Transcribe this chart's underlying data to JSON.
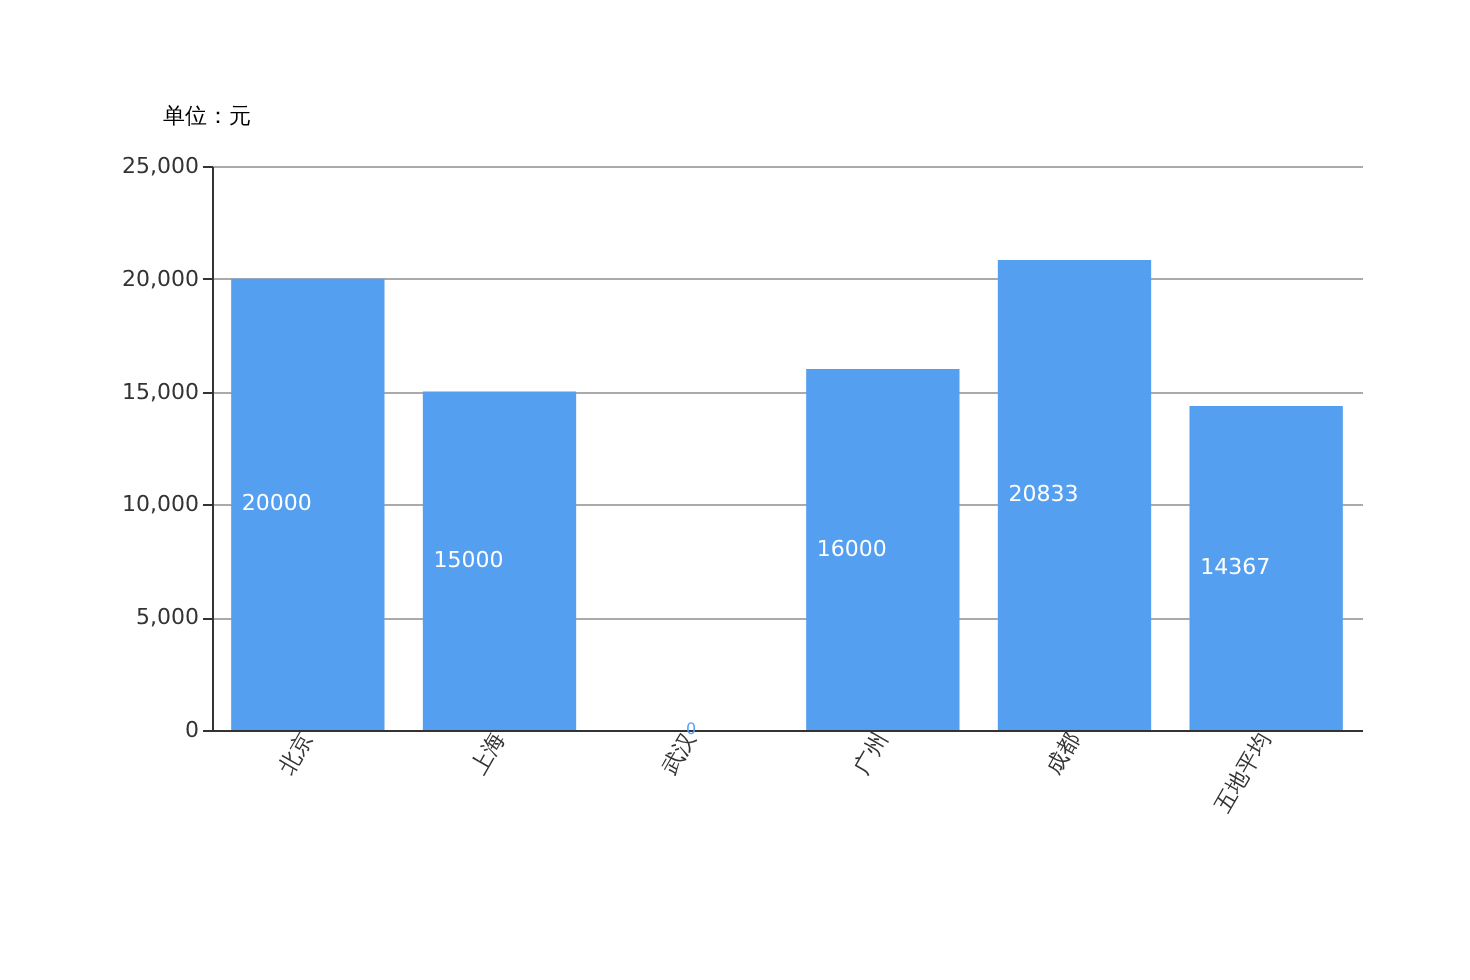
{
  "chart_data": {
    "type": "bar",
    "ylabel": "单位：元",
    "categories": [
      "北京",
      "上海",
      "武汉",
      "广州",
      "成都",
      "五地平均"
    ],
    "series": [
      {
        "color": "#549ff0",
        "values": [
          20000,
          15000,
          0,
          16000,
          20833,
          14367
        ]
      }
    ],
    "ylim": [
      0,
      25000
    ],
    "yticks": [
      {
        "value": 0,
        "label": "0"
      },
      {
        "value": 5000,
        "label": "5,000"
      },
      {
        "value": 10000,
        "label": "10,000"
      },
      {
        "value": 15000,
        "label": "15,000"
      },
      {
        "value": 20000,
        "label": "20,000"
      },
      {
        "value": 25000,
        "label": "25,000"
      }
    ],
    "grid": "y",
    "data_labels": true
  }
}
